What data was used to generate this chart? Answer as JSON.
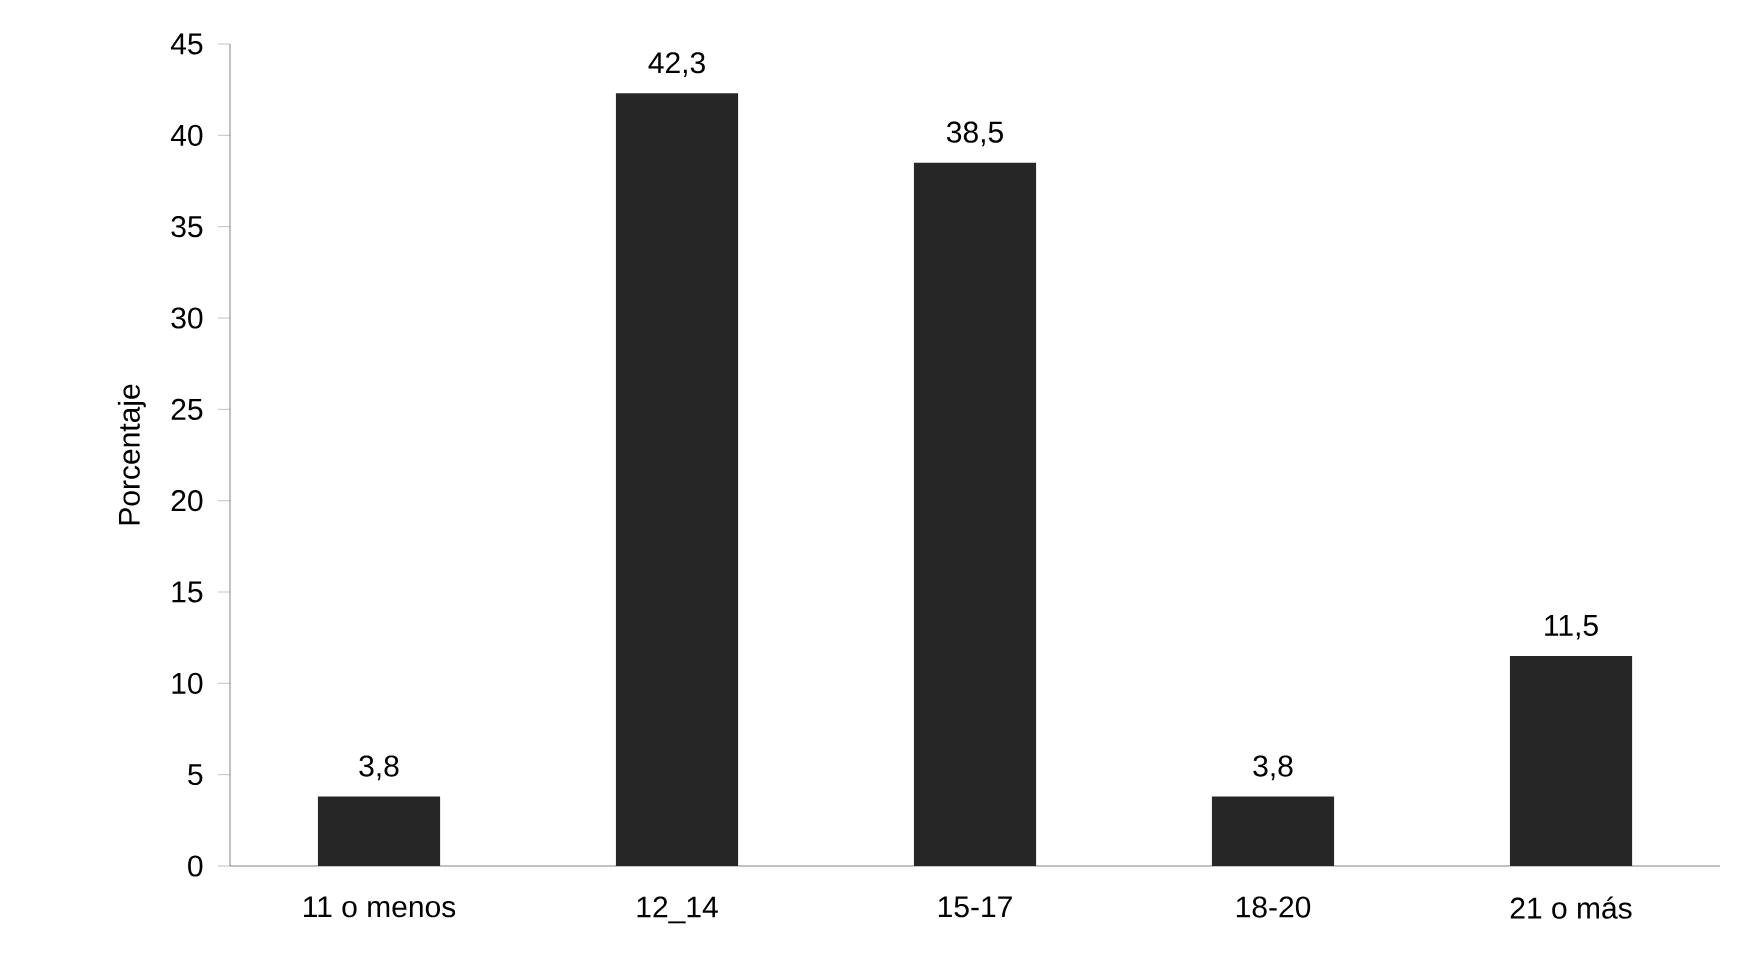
{
  "chart_data": {
    "type": "bar",
    "ylabel": "Porcentaje",
    "categories": [
      "11 o menos",
      "12_14",
      "15-17",
      "18-20",
      "21 o más"
    ],
    "values": [
      3.8,
      42.3,
      38.5,
      3.8,
      11.5
    ],
    "value_labels": [
      "3,8",
      "42,3",
      "38,5",
      "3,8",
      "11,5"
    ],
    "color": "#262626",
    "ylim": [
      0,
      45
    ],
    "yticks": [
      0,
      5,
      10,
      15,
      20,
      25,
      30,
      35,
      40,
      45
    ],
    "grid": false
  }
}
